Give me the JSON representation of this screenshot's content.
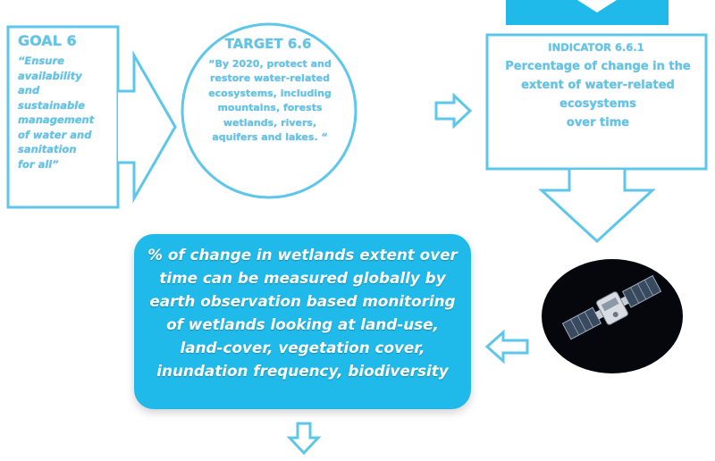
{
  "colors": {
    "accent": "#1fb9ea",
    "outline": "#5cc6eb",
    "text_light": "#ffffff"
  },
  "goal": {
    "title": "GOAL 6",
    "lines": [
      "“Ensure",
      "availability",
      "and",
      "sustainable",
      "management",
      "of water and",
      "sanitation",
      "for all”"
    ]
  },
  "target": {
    "title": "TARGET 6.6",
    "lines": [
      "“By 2020, protect and",
      "restore water-related",
      "ecosystems, including",
      "mountains, forests",
      "wetlands, rivers,",
      "aquifers and lakes. “"
    ]
  },
  "indicator": {
    "title": "INDICATOR 6.6.1",
    "lines": [
      "Percentage of change in the",
      "extent of water-related",
      "ecosystems",
      "over time"
    ]
  },
  "measure": {
    "lines": [
      "% of change in wetlands extent over",
      "time can be measured globally by",
      "earth observation based monitoring",
      "of wetlands looking at land-use,",
      "land-cover, vegetation cover,",
      "inundation frequency, biodiversity"
    ]
  },
  "icons": {
    "satellite": "satellite-earth-image",
    "arrows": [
      "arrow-right-icon",
      "arrow-right-icon",
      "arrow-down-icon",
      "arrow-left-icon",
      "arrow-down-icon",
      "arrow-down-icon"
    ]
  }
}
